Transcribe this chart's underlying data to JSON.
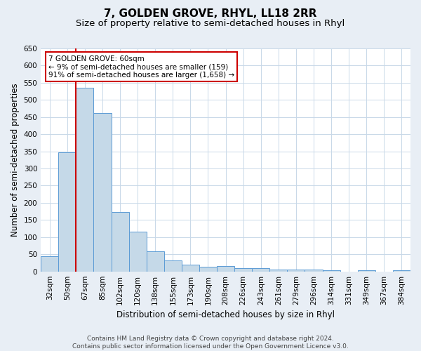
{
  "title": "7, GOLDEN GROVE, RHYL, LL18 2RR",
  "subtitle": "Size of property relative to semi-detached houses in Rhyl",
  "xlabel": "Distribution of semi-detached houses by size in Rhyl",
  "ylabel": "Number of semi-detached properties",
  "categories": [
    "32sqm",
    "50sqm",
    "67sqm",
    "85sqm",
    "102sqm",
    "120sqm",
    "138sqm",
    "155sqm",
    "173sqm",
    "190sqm",
    "208sqm",
    "226sqm",
    "243sqm",
    "261sqm",
    "279sqm",
    "296sqm",
    "314sqm",
    "331sqm",
    "349sqm",
    "367sqm",
    "384sqm"
  ],
  "values": [
    45,
    348,
    535,
    462,
    174,
    115,
    58,
    33,
    20,
    14,
    15,
    10,
    10,
    6,
    6,
    5,
    4,
    0,
    4,
    0,
    4
  ],
  "bar_color": "#c5d9e8",
  "bar_edge_color": "#5b9bd5",
  "red_line_x": 1.5,
  "annotation_title": "7 GOLDEN GROVE: 60sqm",
  "annotation_line1": "← 9% of semi-detached houses are smaller (159)",
  "annotation_line2": "91% of semi-detached houses are larger (1,658) →",
  "vline_color": "#cc0000",
  "box_edge_color": "#cc0000",
  "ylim": [
    0,
    650
  ],
  "yticks": [
    0,
    50,
    100,
    150,
    200,
    250,
    300,
    350,
    400,
    450,
    500,
    550,
    600,
    650
  ],
  "footer1": "Contains HM Land Registry data © Crown copyright and database right 2024.",
  "footer2": "Contains public sector information licensed under the Open Government Licence v3.0.",
  "bg_color": "#e8eef5",
  "plot_bg_color": "#ffffff",
  "grid_color": "#c8d8e8",
  "title_fontsize": 11,
  "subtitle_fontsize": 9.5,
  "axis_label_fontsize": 8.5,
  "tick_fontsize": 7.5,
  "footer_fontsize": 6.5,
  "annotation_fontsize": 7.5
}
